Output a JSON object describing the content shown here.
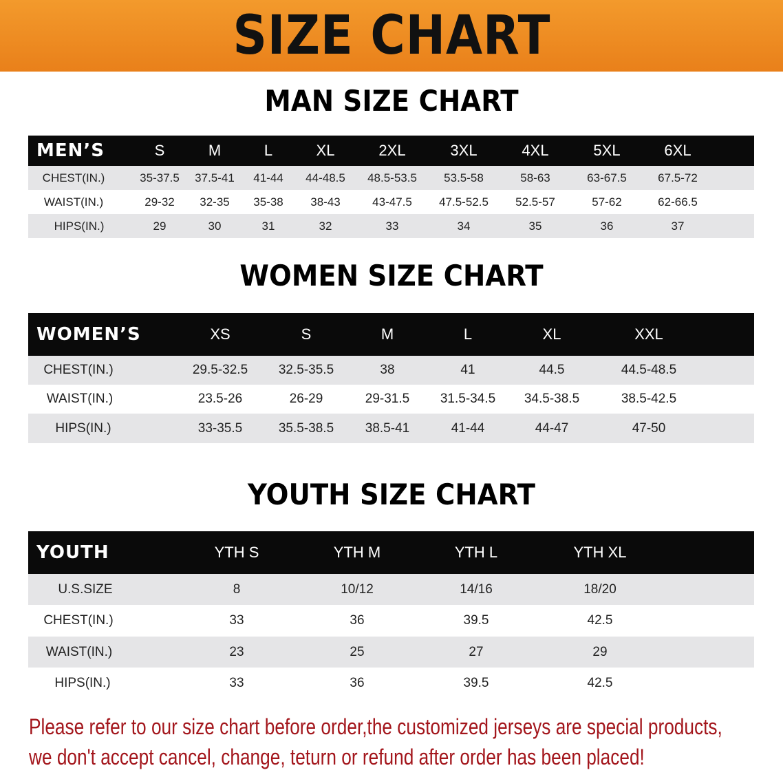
{
  "title": "SIZE CHART",
  "men": {
    "section_title": "MAN SIZE CHART",
    "header_label": "MEN’S",
    "sizes": [
      "S",
      "M",
      "L",
      "XL",
      "2XL",
      "3XL",
      "4XL",
      "5XL",
      "6XL"
    ],
    "rows": [
      {
        "label": "CHEST(IN.)",
        "values": [
          "35-37.5",
          "37.5-41",
          "41-44",
          "44-48.5",
          "48.5-53.5",
          "53.5-58",
          "58-63",
          "63-67.5",
          "67.5-72"
        ]
      },
      {
        "label": "WAIST(IN.)",
        "values": [
          "29-32",
          "32-35",
          "35-38",
          "38-43",
          "43-47.5",
          "47.5-52.5",
          "52.5-57",
          "57-62",
          "62-66.5"
        ]
      },
      {
        "label": "HIPS(IN.)",
        "values": [
          "29",
          "30",
          "31",
          "32",
          "33",
          "34",
          "35",
          "36",
          "37"
        ]
      }
    ]
  },
  "women": {
    "section_title": "WOMEN SIZE CHART",
    "header_label": "WOMEN’S",
    "sizes": [
      "XS",
      "S",
      "M",
      "L",
      "XL",
      "XXL"
    ],
    "rows": [
      {
        "label": "CHEST(IN.)",
        "values": [
          "29.5-32.5",
          "32.5-35.5",
          "38",
          "41",
          "44.5",
          "44.5-48.5"
        ]
      },
      {
        "label": "WAIST(IN.)",
        "values": [
          "23.5-26",
          "26-29",
          "29-31.5",
          "31.5-34.5",
          "34.5-38.5",
          "38.5-42.5"
        ]
      },
      {
        "label": "HIPS(IN.)",
        "values": [
          "33-35.5",
          "35.5-38.5",
          "38.5-41",
          "41-44",
          "44-47",
          "47-50"
        ]
      }
    ]
  },
  "youth": {
    "section_title": "YOUTH SIZE CHART",
    "header_label": "YOUTH",
    "sizes": [
      "YTH S",
      "YTH M",
      "YTH L",
      "YTH XL"
    ],
    "rows": [
      {
        "label": "U.S.SIZE",
        "values": [
          "8",
          "10/12",
          "14/16",
          "18/20"
        ]
      },
      {
        "label": "CHEST(IN.)",
        "values": [
          "33",
          "36",
          "39.5",
          "42.5"
        ]
      },
      {
        "label": "WAIST(IN.)",
        "values": [
          "23",
          "25",
          "27",
          "29"
        ]
      },
      {
        "label": "HIPS(IN.)",
        "values": [
          "33",
          "36",
          "39.5",
          "42.5"
        ]
      }
    ]
  },
  "notice": {
    "line1": "Please refer to our size chart before order,the customized jerseys are special products,",
    "line2": "we don't accept cancel, change, teturn or refund after order has been placed!"
  },
  "colors": {
    "banner": "#ee8a22",
    "notice": "#a3161c",
    "header_row": "#0a0a0a",
    "alt_row": "#e5e5e7"
  }
}
